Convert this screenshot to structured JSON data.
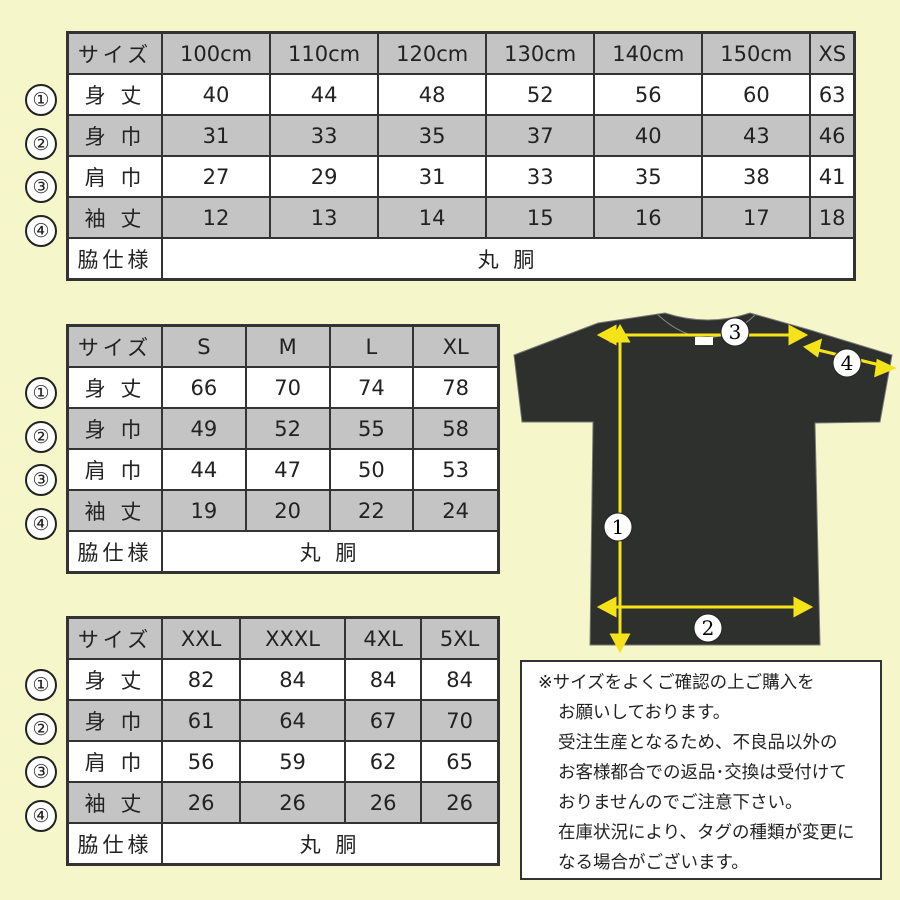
{
  "markers": [
    "①",
    "②",
    "③",
    "④"
  ],
  "tables": [
    {
      "header": [
        "サイズ",
        "100cm",
        "110cm",
        "120cm",
        "130cm",
        "140cm",
        "150cm",
        "XS"
      ],
      "rows": [
        {
          "label": "身 丈",
          "values": [
            "40",
            "44",
            "48",
            "52",
            "56",
            "60",
            "63"
          ]
        },
        {
          "label": "身 巾",
          "values": [
            "31",
            "33",
            "35",
            "37",
            "40",
            "43",
            "46"
          ]
        },
        {
          "label": "肩 巾",
          "values": [
            "27",
            "29",
            "31",
            "33",
            "35",
            "38",
            "41"
          ]
        },
        {
          "label": "袖 丈",
          "values": [
            "12",
            "13",
            "14",
            "15",
            "16",
            "17",
            "18"
          ]
        }
      ],
      "side_label": "脇仕様",
      "side_value": "丸 胴"
    },
    {
      "header": [
        "サイズ",
        "S",
        "M",
        "L",
        "XL"
      ],
      "rows": [
        {
          "label": "身 丈",
          "values": [
            "66",
            "70",
            "74",
            "78"
          ]
        },
        {
          "label": "身 巾",
          "values": [
            "49",
            "52",
            "55",
            "58"
          ]
        },
        {
          "label": "肩 巾",
          "values": [
            "44",
            "47",
            "50",
            "53"
          ]
        },
        {
          "label": "袖 丈",
          "values": [
            "19",
            "20",
            "22",
            "24"
          ]
        }
      ],
      "side_label": "脇仕様",
      "side_value": "丸 胴"
    },
    {
      "header": [
        "サイズ",
        "XXL",
        "XXXL",
        "4XL",
        "5XL"
      ],
      "rows": [
        {
          "label": "身 丈",
          "values": [
            "82",
            "84",
            "84",
            "84"
          ]
        },
        {
          "label": "身 巾",
          "values": [
            "61",
            "64",
            "67",
            "70"
          ]
        },
        {
          "label": "肩 巾",
          "values": [
            "56",
            "59",
            "62",
            "65"
          ]
        },
        {
          "label": "袖 丈",
          "values": [
            "26",
            "26",
            "26",
            "26"
          ]
        }
      ],
      "side_label": "脇仕様",
      "side_value": "丸 胴"
    }
  ],
  "diagram": {
    "labels": [
      "1",
      "2",
      "3",
      "4"
    ],
    "shirt_color": "#2e302e",
    "arrow_color": "#f5e31a"
  },
  "note": {
    "lines": [
      "※サイズをよくご確認の上ご購入を",
      "お願いしております。",
      "受注生産となるため、不良品以外の",
      "お客様都合での返品･交換は受付けて",
      "おりませんのでご注意下さい。",
      "在庫状況により、タグの種類が変更に",
      "なる場合がございます。"
    ]
  }
}
